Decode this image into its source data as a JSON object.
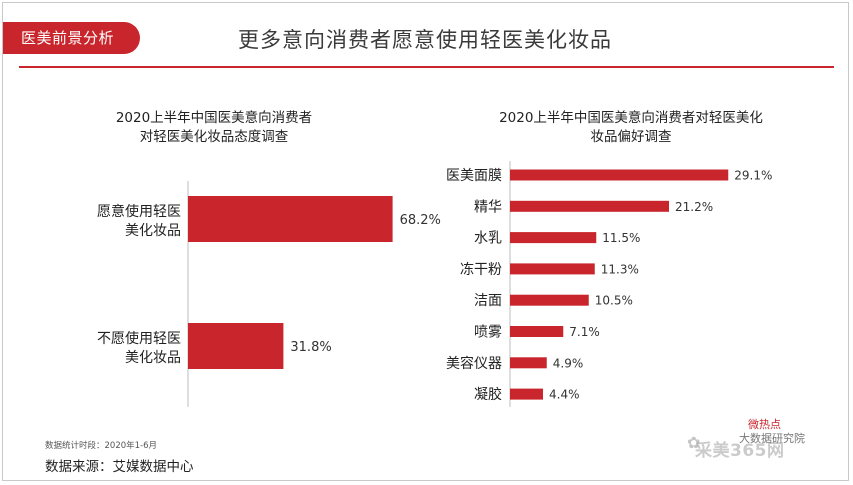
{
  "header": {
    "tag": "医美前景分析",
    "title": "更多意向消费者愿意使用轻医美化妆品"
  },
  "colors": {
    "accent": "#c8262c",
    "text": "#222222"
  },
  "chart_data": [
    {
      "type": "bar",
      "orientation": "horizontal",
      "title_lines": [
        "2020上半年中国医美意向消费者",
        "对轻医美化妆品态度调查"
      ],
      "categories": [
        [
          "愿意使用轻医",
          "美化妆品"
        ],
        [
          "不愿使用轻医",
          "美化妆品"
        ]
      ],
      "values": [
        68.2,
        31.8
      ],
      "value_labels": [
        "68.2%",
        "31.8%"
      ],
      "xlim": [
        0,
        100
      ],
      "color": "#c8262c",
      "grid": false,
      "legend": "none"
    },
    {
      "type": "bar",
      "orientation": "horizontal",
      "title_lines": [
        "2020上半年中国医美意向消费者对轻医美化",
        "妆品偏好调查"
      ],
      "categories": [
        "医美面膜",
        "精华",
        "水乳",
        "冻干粉",
        "洁面",
        "喷雾",
        "美容仪器",
        "凝胶"
      ],
      "values": [
        29.1,
        21.2,
        11.5,
        11.3,
        10.5,
        7.1,
        4.9,
        4.4
      ],
      "value_labels": [
        "29.1%",
        "21.2%",
        "11.5%",
        "11.3%",
        "10.5%",
        "7.1%",
        "4.9%",
        "4.4%"
      ],
      "xlim": [
        0,
        30
      ],
      "color": "#c8262c",
      "grid": false,
      "legend": "none"
    }
  ],
  "footer": {
    "period": "数据统计时段：2020年1-6月",
    "source": "数据来源：艾媒数据中心"
  },
  "branding": {
    "logo_main": "微热点",
    "logo_sub": "大数据研究院",
    "watermark": "采美365网"
  }
}
